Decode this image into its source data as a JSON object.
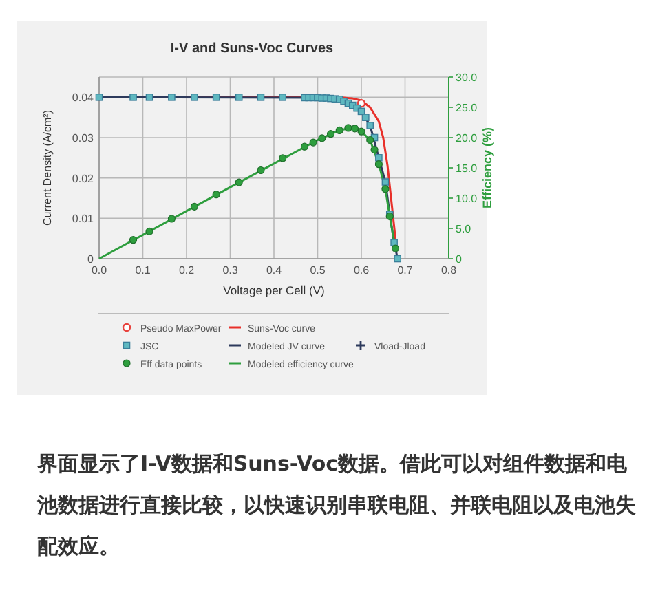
{
  "chart_data": {
    "type": "line",
    "title": "I-V and Suns-Voc Curves",
    "xlabel": "Voltage per Cell (V)",
    "ylabel": "Current Density (A/cm²)",
    "y2label": "Efficiency (%)",
    "xlim": [
      0,
      0.8
    ],
    "xticks": [
      {
        "value": 0,
        "label": "0.0"
      },
      0.1,
      0.2,
      0.3,
      0.4,
      0.5,
      0.6,
      0.7,
      0.8
    ],
    "ylim": [
      0,
      0.045
    ],
    "yticks": [
      0,
      0.01,
      0.02,
      0.03,
      0.04,
      {
        "value": 0.045,
        "label": null
      }
    ],
    "y2lim": [
      0,
      30
    ],
    "y2ticks": [
      0,
      {
        "value": 5,
        "label": "5.0"
      },
      {
        "value": 10,
        "label": "10.0"
      },
      {
        "value": 15,
        "label": "15.0"
      },
      {
        "value": 20,
        "label": "20.0"
      },
      {
        "value": 25,
        "label": "25.0"
      },
      {
        "value": 30,
        "label": "30.0"
      }
    ],
    "grid": true,
    "legend": "bottom",
    "series": [
      {
        "name": "Pseudo MaxPower",
        "type": "scatter",
        "marker": "circle",
        "color": "#e8413c",
        "x": [
          0.6
        ],
        "values": [
          0.0385
        ]
      },
      {
        "name": "JSC",
        "type": "scatter",
        "marker": "square",
        "color": "#5fb8c0",
        "x": [
          0,
          0.078,
          0.115,
          0.166,
          0.218,
          0.268,
          0.32,
          0.37,
          0.42,
          0.47,
          0.48,
          0.49,
          0.5,
          0.51,
          0.52,
          0.53,
          0.54,
          0.55,
          0.56,
          0.57,
          0.58,
          0.59,
          0.6,
          0.61,
          0.62,
          0.63,
          0.64,
          0.655,
          0.665,
          0.675,
          0.683
        ],
        "values": [
          0.04,
          0.04,
          0.04,
          0.04,
          0.04,
          0.04,
          0.04,
          0.04,
          0.04,
          0.0399,
          0.0399,
          0.0399,
          0.0399,
          0.0398,
          0.0398,
          0.0397,
          0.0396,
          0.0395,
          0.039,
          0.0385,
          0.038,
          0.0373,
          0.0365,
          0.035,
          0.033,
          0.03,
          0.025,
          0.019,
          0.011,
          0.004,
          0
        ]
      },
      {
        "name": "Eff data points",
        "type": "scatter",
        "marker": "circle",
        "axis": "y2",
        "color": "#2e9e3e",
        "x": [
          0.078,
          0.115,
          0.166,
          0.218,
          0.268,
          0.32,
          0.37,
          0.42,
          0.47,
          0.49,
          0.51,
          0.53,
          0.55,
          0.57,
          0.585,
          0.6,
          0.62,
          0.63,
          0.64,
          0.655,
          0.665,
          0.678
        ],
        "values": [
          3.1,
          4.5,
          6.6,
          8.6,
          10.6,
          12.6,
          14.6,
          16.6,
          18.5,
          19.2,
          19.9,
          20.6,
          21.2,
          21.6,
          21.5,
          21,
          19.6,
          18,
          15.6,
          11.5,
          7,
          1.7
        ]
      },
      {
        "name": "Suns-Voc curve",
        "type": "line",
        "color": "#e8302a",
        "x": [
          0,
          0.55,
          0.58,
          0.6,
          0.62,
          0.64,
          0.65,
          0.66,
          0.67,
          0.68
        ],
        "values": [
          0.04,
          0.04,
          0.0397,
          0.0392,
          0.0375,
          0.034,
          0.03,
          0.023,
          0.013,
          0.003
        ]
      },
      {
        "name": "Modeled JV curve",
        "type": "line",
        "color": "#2d3a5c",
        "x": [
          0,
          0.5,
          0.54,
          0.57,
          0.6,
          0.62,
          0.64,
          0.655,
          0.665,
          0.675,
          0.683
        ],
        "values": [
          0.04,
          0.0399,
          0.0396,
          0.0385,
          0.0365,
          0.033,
          0.025,
          0.019,
          0.011,
          0.004,
          0
        ]
      },
      {
        "name": "Vload-Jload",
        "type": "scatter",
        "marker": "cross",
        "color": "#2d3a5c"
      },
      {
        "name": "Modeled efficiency curve",
        "type": "line",
        "axis": "y2",
        "color": "#2e9e3e",
        "x": [
          0,
          0.3,
          0.5,
          0.55,
          0.575,
          0.6,
          0.62,
          0.64,
          0.655,
          0.665,
          0.678
        ],
        "values": [
          0,
          11.8,
          19.6,
          21.2,
          21.6,
          21,
          19.6,
          15.6,
          11.5,
          7,
          1.7
        ]
      }
    ],
    "annotations": [
      "界面显示了I-V数据和Suns-Voc数据。借此可以对组件数据和电池数据进行直接比较，以快速识别串联电阻、并联电阻以及电池失配效应。"
    ]
  }
}
